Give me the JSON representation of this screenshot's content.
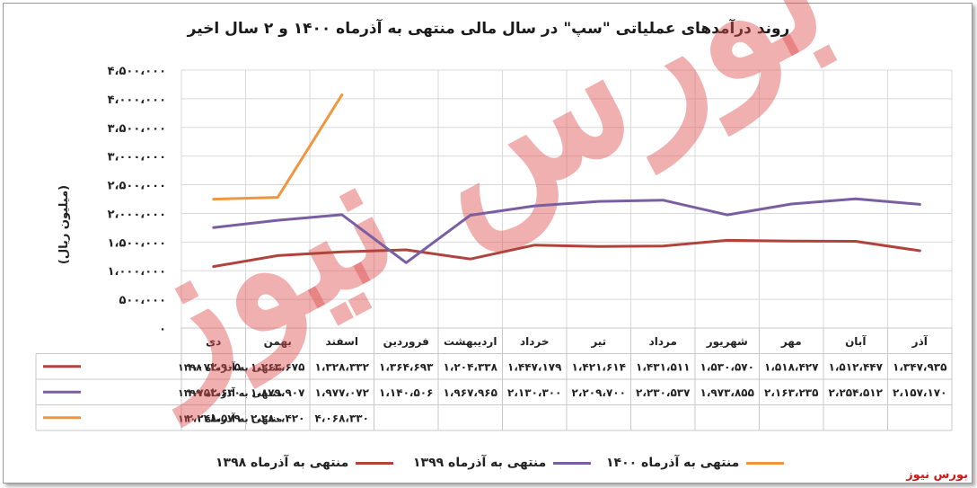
{
  "title": "روند درآمدهای عملیاتی \"سپ\"  در سال مالی منتهی به آذرماه ۱۴۰۰ و ۲ سال اخیر",
  "ylabel": "(میلیون ریال)",
  "source": "بورس نیوز",
  "watermark": "بورس نیوز",
  "chart_data": {
    "type": "line",
    "categories": [
      "دی",
      "بهمن",
      "اسفند",
      "فروردین",
      "اردیبهشت",
      "خرداد",
      "تیر",
      "مرداد",
      "شهریور",
      "مهر",
      "آبان",
      "آذر"
    ],
    "ylim": [
      0,
      4500000
    ],
    "yticks": [
      0,
      500000,
      1000000,
      1500000,
      2000000,
      2500000,
      3000000,
      3500000,
      4000000,
      4500000
    ],
    "ytick_labels": [
      "۰",
      "۵۰۰،۰۰۰",
      "۱،۰۰۰،۰۰۰",
      "۱،۵۰۰،۰۰۰",
      "۲،۰۰۰،۰۰۰",
      "۲،۵۰۰،۰۰۰",
      "۳،۰۰۰،۰۰۰",
      "۳،۵۰۰،۰۰۰",
      "۴،۰۰۰،۰۰۰",
      "۴،۵۰۰،۰۰۰"
    ],
    "grid": true,
    "legend_position": "bottom",
    "series": [
      {
        "name": "منتهی به آذرماه ۱۳۹۸",
        "color": "#b0433c",
        "values": [
          1072905,
          1263675,
          1328332,
          1364693,
          1204338,
          1447179,
          1421614,
          1431511,
          1530570,
          1518427,
          1512447,
          1347935
        ],
        "labels": [
          "۱،۰۷۲،۹۰۵",
          "۱،۲۶۳،۶۷۵",
          "۱،۳۲۸،۳۳۲",
          "۱،۳۶۴،۶۹۳",
          "۱،۲۰۴،۳۳۸",
          "۱،۴۴۷،۱۷۹",
          "۱،۴۲۱،۶۱۴",
          "۱،۴۳۱،۵۱۱",
          "۱،۵۳۰،۵۷۰",
          "۱،۵۱۸،۴۲۷",
          "۱،۵۱۲،۴۴۷",
          "۱،۳۴۷،۹۳۵"
        ]
      },
      {
        "name": "منتهی به آذرماه ۱۳۹۹",
        "color": "#7a5ea2",
        "values": [
          1752630,
          1879907,
          1977072,
          1140506,
          1967965,
          2130300,
          2209700,
          2230537,
          1973855,
          2163235,
          2254512,
          2157170
        ],
        "labels": [
          "۱،۷۵۲،۶۳۰",
          "۱،۸۷۹،۹۰۷",
          "۱،۹۷۷،۰۷۲",
          "۱،۱۴۰،۵۰۶",
          "۱،۹۶۷،۹۶۵",
          "۲،۱۳۰،۳۰۰",
          "۲،۲۰۹،۷۰۰",
          "۲،۲۳۰،۵۳۷",
          "۱،۹۷۳،۸۵۵",
          "۲،۱۶۳،۲۳۵",
          "۲،۲۵۴،۵۱۲",
          "۲،۱۵۷،۱۷۰"
        ]
      },
      {
        "name": "منتهی به آذرماه ۱۴۰۰",
        "color": "#f0963f",
        "values": [
          2248579,
          2280420,
          4068330,
          null,
          null,
          null,
          null,
          null,
          null,
          null,
          null,
          null
        ],
        "labels": [
          "۲،۲۴۸،۵۷۹",
          "۲،۲۸۰،۴۲۰",
          "۴،۰۶۸،۳۳۰",
          "",
          "",
          "",
          "",
          "",
          "",
          "",
          "",
          ""
        ]
      }
    ]
  }
}
